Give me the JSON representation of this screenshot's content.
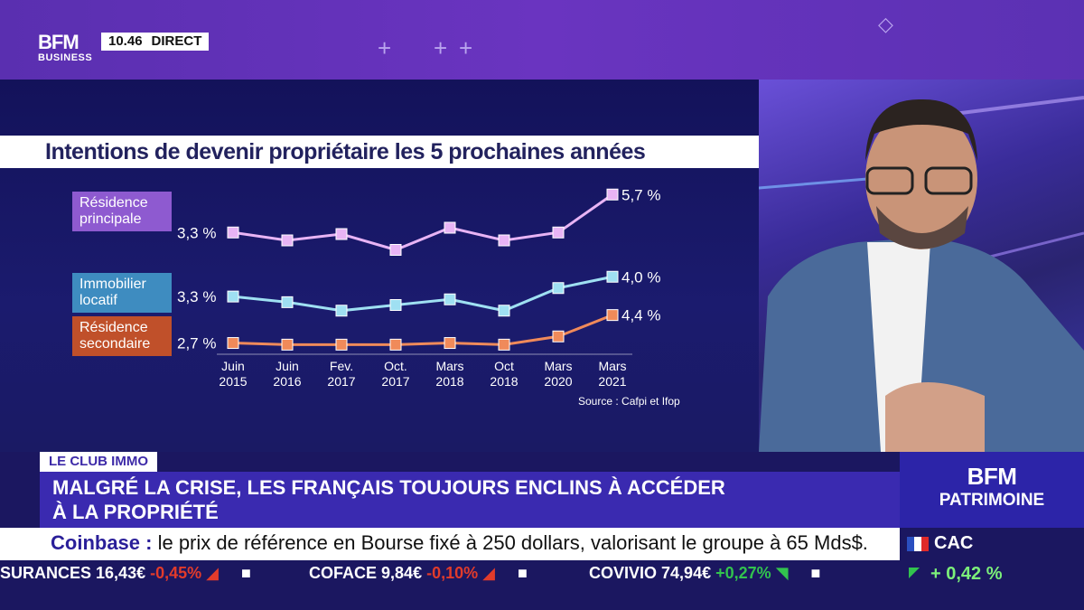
{
  "header": {
    "logo_line1": "BFM",
    "logo_line2": "BUSINESS",
    "time": "10.46",
    "live_label": "DIRECT"
  },
  "chart_title": "Intentions de devenir propriétaire les 5 prochaines années",
  "chart_data": {
    "type": "line",
    "title": "Intentions de devenir propriétaire les 5 prochaines années",
    "categories": [
      "Juin 2015",
      "Juin 2016",
      "Fev. 2017",
      "Oct. 2017",
      "Mars 2018",
      "Oct 2018",
      "Mars 2020",
      "Mars 2021"
    ],
    "category_lines": [
      [
        "Juin",
        "2015"
      ],
      [
        "Juin",
        "2016"
      ],
      [
        "Fev.",
        "2017"
      ],
      [
        "Oct.",
        "2017"
      ],
      [
        "Mars",
        "2018"
      ],
      [
        "Oct",
        "2018"
      ],
      [
        "Mars",
        "2020"
      ],
      [
        "Mars",
        "2021"
      ]
    ],
    "series": [
      {
        "name": "Résidence principale",
        "name_lines": [
          "Résidence",
          "principale"
        ],
        "color": "#e8b4f5",
        "label_bg": "#8e5ad0",
        "values": [
          3.3,
          2.8,
          3.2,
          2.2,
          3.6,
          2.8,
          3.3,
          5.7
        ],
        "first_label": "3,3 %",
        "last_label": "5,7 %"
      },
      {
        "name": "Immobilier locatif",
        "name_lines": [
          "Immobilier",
          "locatif"
        ],
        "color": "#9fe0f2",
        "label_bg": "#3e8cc0",
        "values": [
          3.3,
          3.1,
          2.8,
          3.0,
          3.2,
          2.8,
          3.6,
          4.0
        ],
        "first_label": "3,3 %",
        "last_label": "4,0 %"
      },
      {
        "name": "Résidence secondaire",
        "name_lines": [
          "Résidence",
          "secondaire"
        ],
        "color": "#f08a5a",
        "label_bg": "#c0502a",
        "values": [
          2.7,
          2.6,
          2.6,
          2.6,
          2.7,
          2.6,
          3.1,
          4.4
        ],
        "first_label": "2,7 %",
        "last_label": "4,4 %"
      }
    ],
    "source": "Source : Cafpi et Ifop",
    "grid": false
  },
  "sticker": "LE CLUB IMMO",
  "headline": {
    "line1": "MALGRÉ LA CRISE, LES FRANÇAIS TOUJOURS ENCLINS À ACCÉDER",
    "line2": "À LA PROPRIÉTÉ"
  },
  "ticker": {
    "company": "Coinbase :",
    "text": " le prix de référence en Bourse fixé à 250 dollars, valorisant le groupe à 65 Mds$."
  },
  "market": [
    {
      "name": "SURANCES",
      "value": "16,43€",
      "change": "-0,45%",
      "dir": "neg"
    },
    {
      "name": "COFACE",
      "value": "9,84€",
      "change": "-0,10%",
      "dir": "neg"
    },
    {
      "name": "COVIVIO",
      "value": "74,94€",
      "change": "+0,27%",
      "dir": "pos"
    }
  ],
  "brand": {
    "line1": "BFM",
    "line2": "PATRIMOINE"
  },
  "index": {
    "name": "CAC",
    "change": "+ 0,42 %"
  }
}
